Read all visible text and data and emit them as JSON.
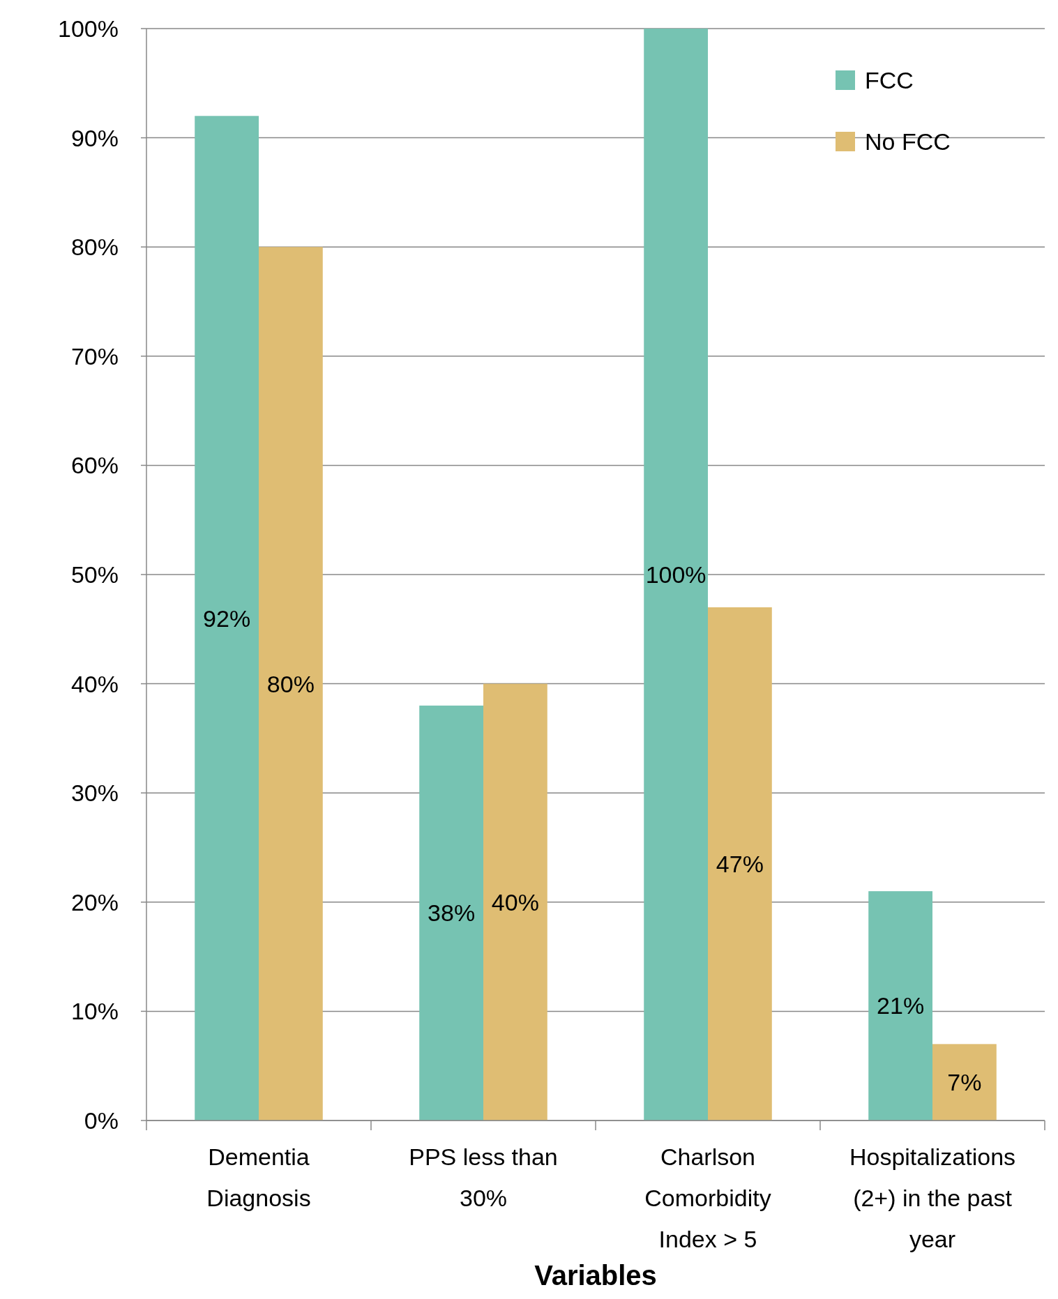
{
  "chart_data": {
    "type": "bar",
    "xlabel": "Variables",
    "categories": [
      "Dementia Diagnosis",
      "PPS less than 30%",
      "Charlson Comorbidity Index > 5",
      "Hospitalizations (2+) in the past year"
    ],
    "series": [
      {
        "name": "FCC",
        "color": "#76c3b2",
        "values": [
          92,
          38,
          100,
          21
        ],
        "value_labels": [
          "92%",
          "38%",
          "100%",
          "21%"
        ]
      },
      {
        "name": "No FCC",
        "color": "#dfbd73",
        "values": [
          80,
          40,
          47,
          7
        ],
        "value_labels": [
          "80%",
          "40%",
          "47%",
          "7%"
        ]
      }
    ],
    "ylim": [
      0,
      100
    ],
    "yticks": [
      {
        "value": 0,
        "label": "0%"
      },
      {
        "value": 10,
        "label": "10%"
      },
      {
        "value": 20,
        "label": "20%"
      },
      {
        "value": 30,
        "label": "30%"
      },
      {
        "value": 40,
        "label": "40%"
      },
      {
        "value": 50,
        "label": "50%"
      },
      {
        "value": 60,
        "label": "60%"
      },
      {
        "value": 70,
        "label": "70%"
      },
      {
        "value": 80,
        "label": "80%"
      },
      {
        "value": 90,
        "label": "90%"
      },
      {
        "value": 100,
        "label": "100%"
      }
    ],
    "grid": "y",
    "legend": "top right"
  }
}
